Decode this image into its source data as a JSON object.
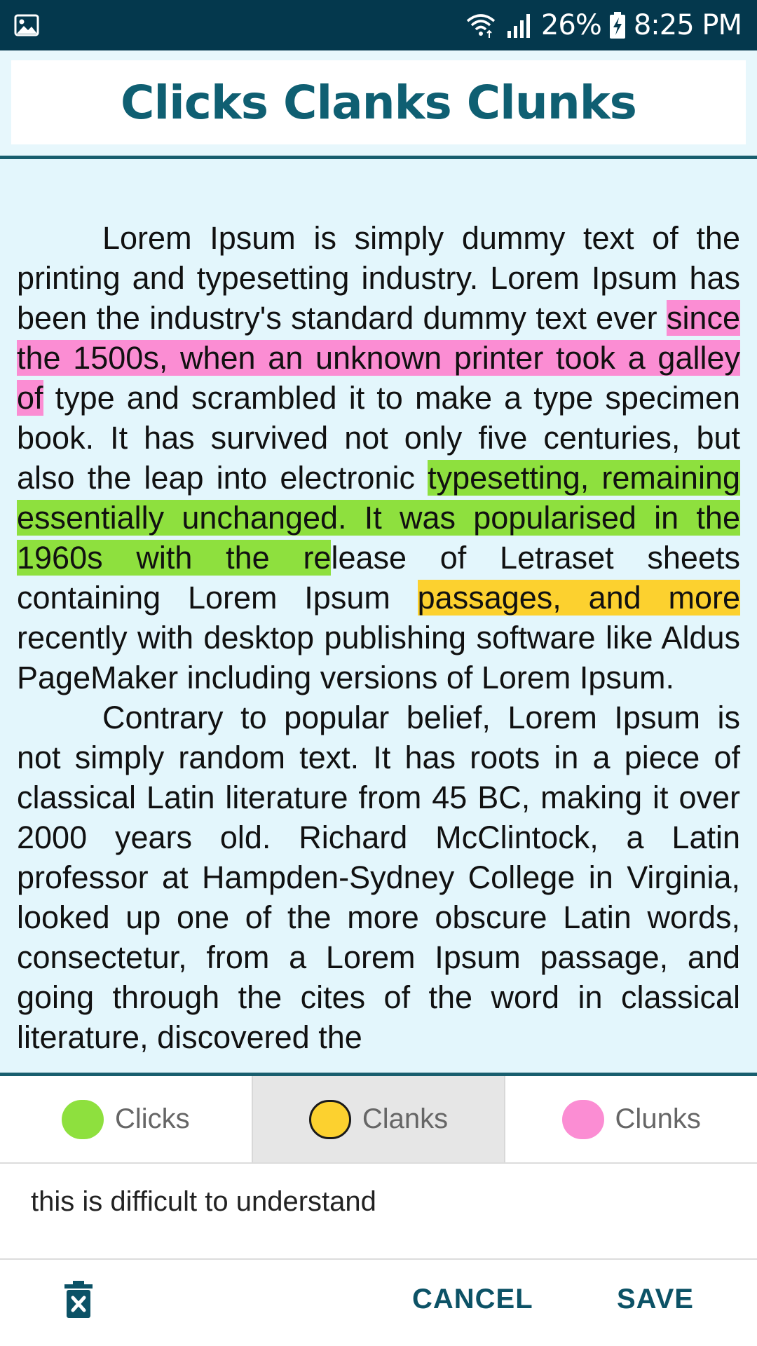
{
  "status_bar": {
    "gallery_icon": "image-icon",
    "wifi_icon": "wifi-icon",
    "signal_icon": "signal-icon",
    "battery_percent": "26%",
    "battery_icon": "battery-charging-icon",
    "time": "8:25 PM"
  },
  "header": {
    "title": "Clicks Clanks Clunks"
  },
  "article": {
    "p1": {
      "s1": "Lorem Ipsum is simply dummy text of the printing and typesetting industry. Lorem Ipsum has been the industry's standard dummy text ever ",
      "h1": "since the 1500s, when an unknown printer took a galley of",
      "s2": " type and scrambled it to make a type specimen book. It has survived not only five centuries, but also the leap into electronic ",
      "h2": "typesetting, remaining essentially unchanged. It was popularised in the 1960s with the re",
      "s3": "lease of Letraset sheets containing Lorem Ipsum ",
      "h3": "passages, and more",
      "s4": " recently with desktop publishing software like Aldus PageMaker including versions of Lorem Ipsum."
    },
    "p2": "Contrary to popular belief, Lorem Ipsum is not simply random text. It has roots in a piece of classical Latin literature from 45 BC, making it over 2000 years old. Richard McClintock, a Latin professor at Hampden-Sydney College in Virginia, looked up one of the more obscure Latin words, consectetur, from a Lorem Ipsum passage, and going through the cites of the word in classical literature, discovered the"
  },
  "colors": {
    "clicks": "#8ee03e",
    "clanks": "#fcd12f",
    "clunks": "#fb8dd3",
    "accent": "#0c5266"
  },
  "tabs": [
    {
      "label": "Clicks",
      "selected": false
    },
    {
      "label": "Clanks",
      "selected": true
    },
    {
      "label": "Clunks",
      "selected": false
    }
  ],
  "comment": {
    "value": "this is difficult to understand"
  },
  "actions": {
    "delete_icon": "delete-icon",
    "cancel": "CANCEL",
    "save": "SAVE"
  }
}
